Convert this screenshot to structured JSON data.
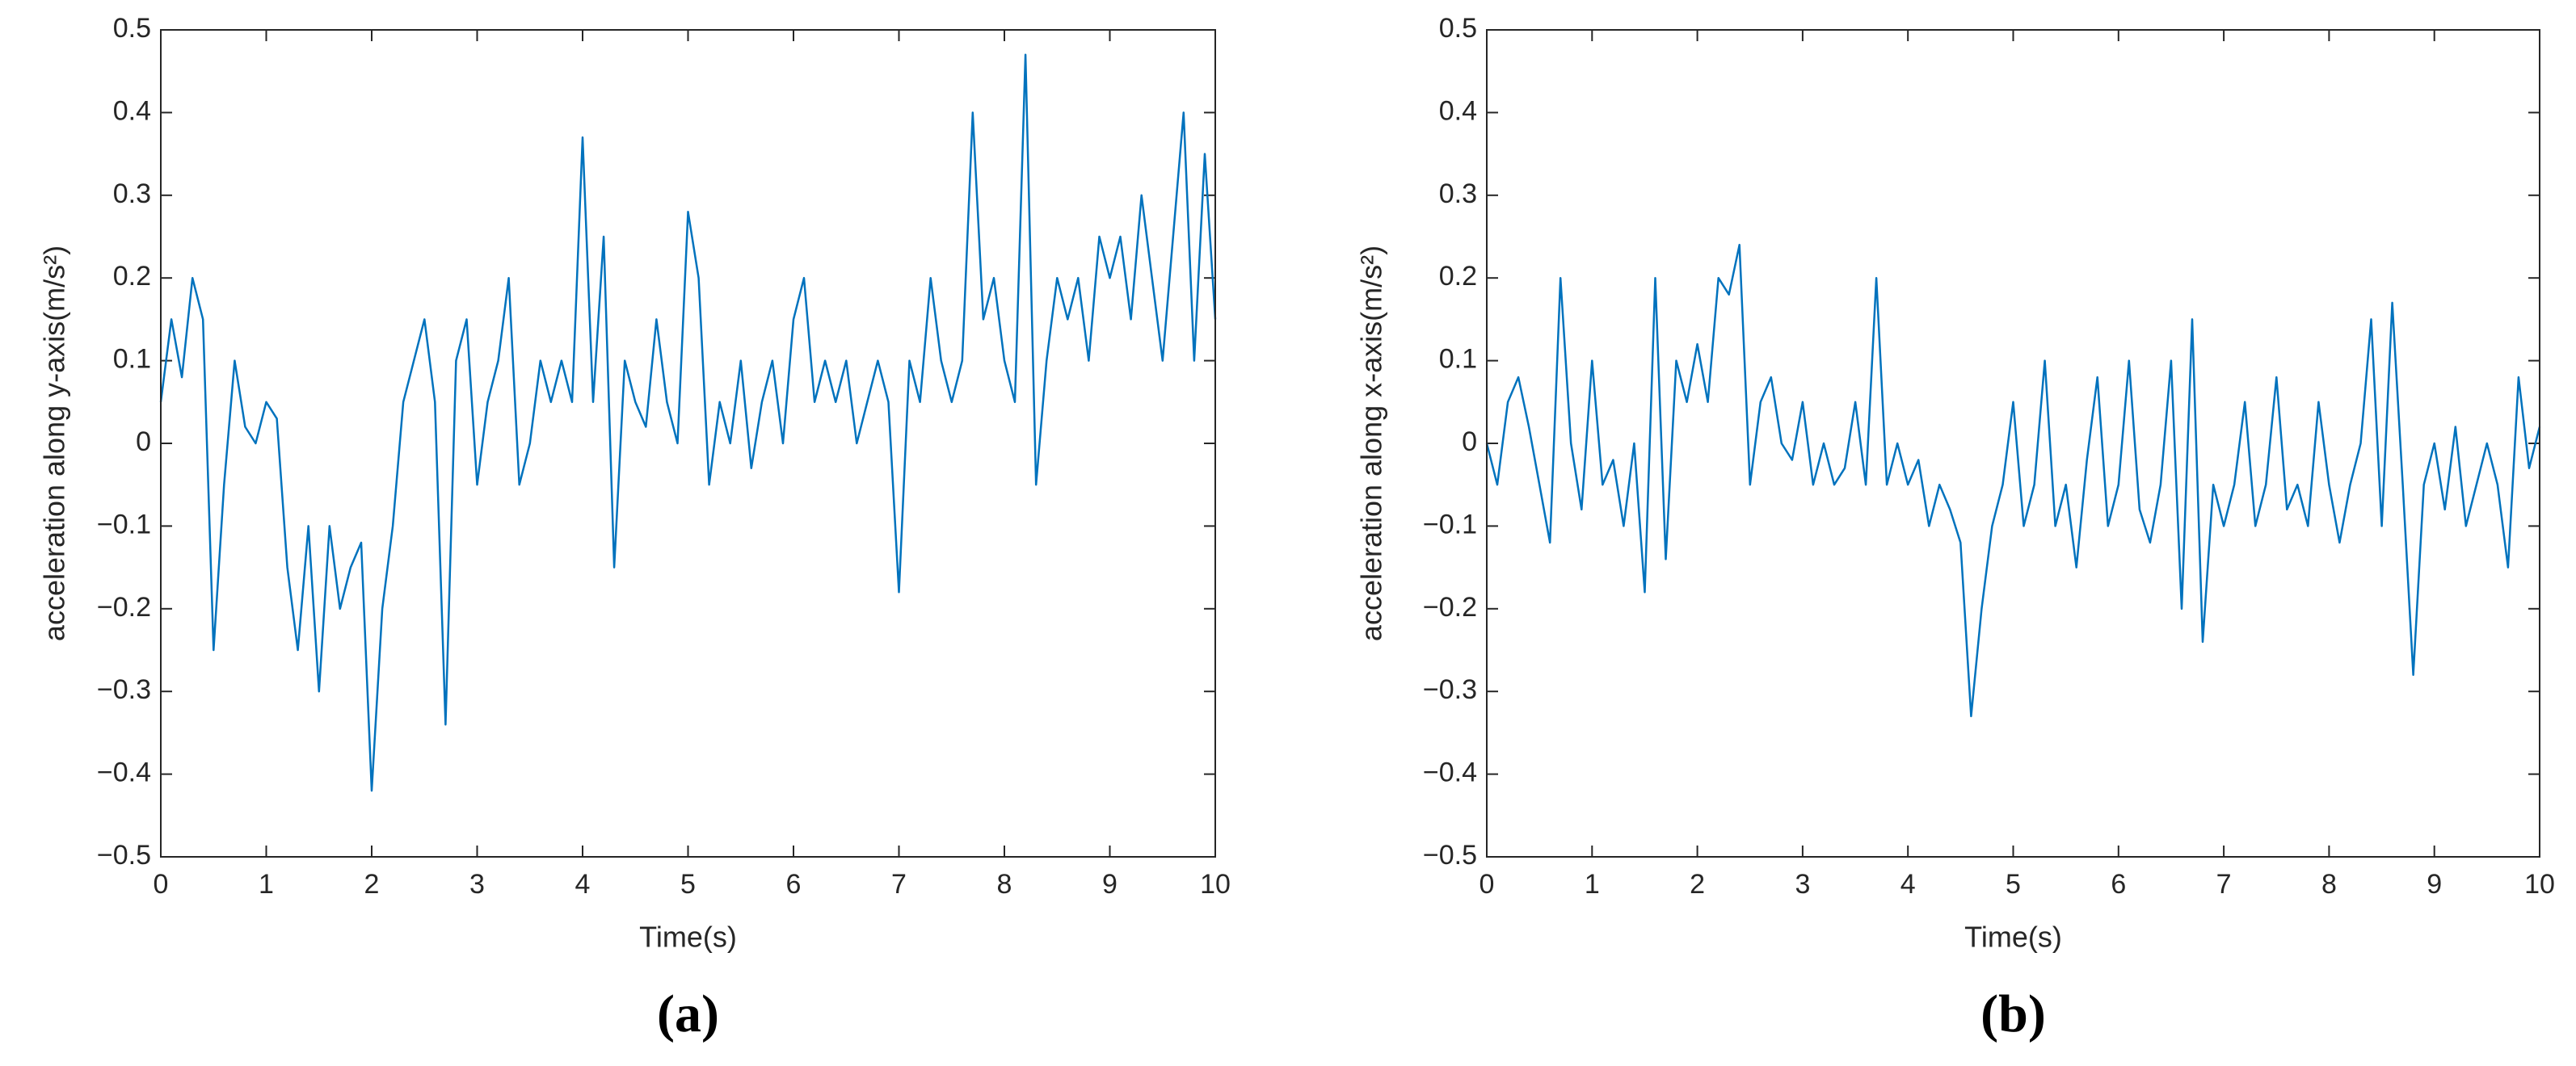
{
  "chart_data": [
    {
      "type": "line",
      "caption": "(a)",
      "xlabel": "Time(s)",
      "ylabel": "acceleration along y-axis(m/s²)",
      "color": "#0072bd",
      "x": [
        0,
        0.1,
        0.2,
        0.3,
        0.4,
        0.5,
        0.6,
        0.7,
        0.8,
        0.9,
        1,
        1.1,
        1.2,
        1.3,
        1.4,
        1.5,
        1.6,
        1.7,
        1.8,
        1.9,
        2,
        2.1,
        2.2,
        2.3,
        2.4,
        2.5,
        2.6,
        2.7,
        2.8,
        2.9,
        3,
        3.1,
        3.2,
        3.3,
        3.4,
        3.5,
        3.6,
        3.7,
        3.8,
        3.9,
        4,
        4.1,
        4.2,
        4.3,
        4.4,
        4.5,
        4.6,
        4.7,
        4.8,
        4.9,
        5,
        5.1,
        5.2,
        5.3,
        5.4,
        5.5,
        5.6,
        5.7,
        5.8,
        5.9,
        6,
        6.1,
        6.2,
        6.3,
        6.4,
        6.5,
        6.6,
        6.7,
        6.8,
        6.9,
        7,
        7.1,
        7.2,
        7.3,
        7.4,
        7.5,
        7.6,
        7.7,
        7.8,
        7.9,
        8,
        8.1,
        8.2,
        8.3,
        8.4,
        8.5,
        8.6,
        8.7,
        8.8,
        8.9,
        9,
        9.1,
        9.2,
        9.3,
        9.4,
        9.5,
        9.6,
        9.7,
        9.8,
        9.9,
        10
      ],
      "values": [
        0.05,
        0.15,
        0.08,
        0.2,
        0.15,
        -0.25,
        -0.05,
        0.1,
        0.02,
        0,
        0.05,
        0.03,
        -0.15,
        -0.25,
        -0.1,
        -0.3,
        -0.1,
        -0.2,
        -0.15,
        -0.12,
        -0.42,
        -0.2,
        -0.1,
        0.05,
        0.1,
        0.15,
        0.05,
        -0.34,
        0.1,
        0.15,
        -0.05,
        0.05,
        0.1,
        0.2,
        -0.05,
        0,
        0.1,
        0.05,
        0.1,
        0.05,
        0.37,
        0.05,
        0.25,
        -0.15,
        0.1,
        0.05,
        0.02,
        0.15,
        0.05,
        0,
        0.28,
        0.2,
        -0.05,
        0.05,
        0,
        0.1,
        -0.03,
        0.05,
        0.1,
        0,
        0.15,
        0.2,
        0.05,
        0.1,
        0.05,
        0.1,
        0,
        0.05,
        0.1,
        0.05,
        -0.18,
        0.1,
        0.05,
        0.2,
        0.1,
        0.05,
        0.1,
        0.4,
        0.15,
        0.2,
        0.1,
        0.05,
        0.47,
        -0.05,
        0.1,
        0.2,
        0.15,
        0.2,
        0.1,
        0.25,
        0.2,
        0.25,
        0.15,
        0.3,
        0.2,
        0.1,
        0.25,
        0.4,
        0.1,
        0.35,
        0.15
      ],
      "xlim": [
        0,
        10
      ],
      "xticks": [
        0,
        1,
        2,
        3,
        4,
        5,
        6,
        7,
        8,
        9,
        10
      ],
      "ylim": [
        -0.5,
        0.5
      ],
      "yticks": [
        {
          "value": -0.5,
          "label": "−0.5"
        },
        {
          "value": -0.4,
          "label": "−0.4"
        },
        {
          "value": -0.3,
          "label": "−0.3"
        },
        {
          "value": -0.2,
          "label": "−0.2"
        },
        {
          "value": -0.1,
          "label": "−0.1"
        },
        0,
        0.1,
        0.2,
        0.3,
        0.4,
        0.5
      ]
    },
    {
      "type": "line",
      "caption": "(b)",
      "xlabel": "Time(s)",
      "ylabel": "acceleration along x-axis(m/s²)",
      "color": "#0072bd",
      "x": [
        0,
        0.1,
        0.2,
        0.3,
        0.4,
        0.5,
        0.6,
        0.7,
        0.8,
        0.9,
        1,
        1.1,
        1.2,
        1.3,
        1.4,
        1.5,
        1.6,
        1.7,
        1.8,
        1.9,
        2,
        2.1,
        2.2,
        2.3,
        2.4,
        2.5,
        2.6,
        2.7,
        2.8,
        2.9,
        3,
        3.1,
        3.2,
        3.3,
        3.4,
        3.5,
        3.6,
        3.7,
        3.8,
        3.9,
        4,
        4.1,
        4.2,
        4.3,
        4.4,
        4.5,
        4.6,
        4.7,
        4.8,
        4.9,
        5,
        5.1,
        5.2,
        5.3,
        5.4,
        5.5,
        5.6,
        5.7,
        5.8,
        5.9,
        6,
        6.1,
        6.2,
        6.3,
        6.4,
        6.5,
        6.6,
        6.7,
        6.8,
        6.9,
        7,
        7.1,
        7.2,
        7.3,
        7.4,
        7.5,
        7.6,
        7.7,
        7.8,
        7.9,
        8,
        8.1,
        8.2,
        8.3,
        8.4,
        8.5,
        8.6,
        8.7,
        8.8,
        8.9,
        9,
        9.1,
        9.2,
        9.3,
        9.4,
        9.5,
        9.6,
        9.7,
        9.8,
        9.9,
        10
      ],
      "values": [
        0,
        -0.05,
        0.05,
        0.08,
        0.02,
        -0.05,
        -0.12,
        0.2,
        0,
        -0.08,
        0.1,
        -0.05,
        -0.02,
        -0.1,
        0,
        -0.18,
        0.2,
        -0.14,
        0.1,
        0.05,
        0.12,
        0.05,
        0.2,
        0.18,
        0.24,
        -0.05,
        0.05,
        0.08,
        0,
        -0.02,
        0.05,
        -0.05,
        0,
        -0.05,
        -0.03,
        0.05,
        -0.05,
        0.2,
        -0.05,
        0,
        -0.05,
        -0.02,
        -0.1,
        -0.05,
        -0.08,
        -0.12,
        -0.33,
        -0.2,
        -0.1,
        -0.05,
        0.05,
        -0.1,
        -0.05,
        0.1,
        -0.1,
        -0.05,
        -0.15,
        -0.02,
        0.08,
        -0.1,
        -0.05,
        0.1,
        -0.08,
        -0.12,
        -0.05,
        0.1,
        -0.2,
        0.15,
        -0.24,
        -0.05,
        -0.1,
        -0.05,
        0.05,
        -0.1,
        -0.05,
        0.08,
        -0.08,
        -0.05,
        -0.1,
        0.05,
        -0.05,
        -0.12,
        -0.05,
        0,
        0.15,
        -0.1,
        0.17,
        -0.05,
        -0.28,
        -0.05,
        0,
        -0.08,
        0.02,
        -0.1,
        -0.05,
        0,
        -0.05,
        -0.15,
        0.08,
        -0.03,
        0.02
      ],
      "xlim": [
        0,
        10
      ],
      "xticks": [
        0,
        1,
        2,
        3,
        4,
        5,
        6,
        7,
        8,
        9,
        10
      ],
      "ylim": [
        -0.5,
        0.5
      ],
      "yticks": [
        {
          "value": -0.5,
          "label": "−0.5"
        },
        {
          "value": -0.4,
          "label": "−0.4"
        },
        {
          "value": -0.3,
          "label": "−0.3"
        },
        {
          "value": -0.2,
          "label": "−0.2"
        },
        {
          "value": -0.1,
          "label": "−0.1"
        },
        0,
        0.1,
        0.2,
        0.3,
        0.4,
        0.5
      ]
    }
  ]
}
